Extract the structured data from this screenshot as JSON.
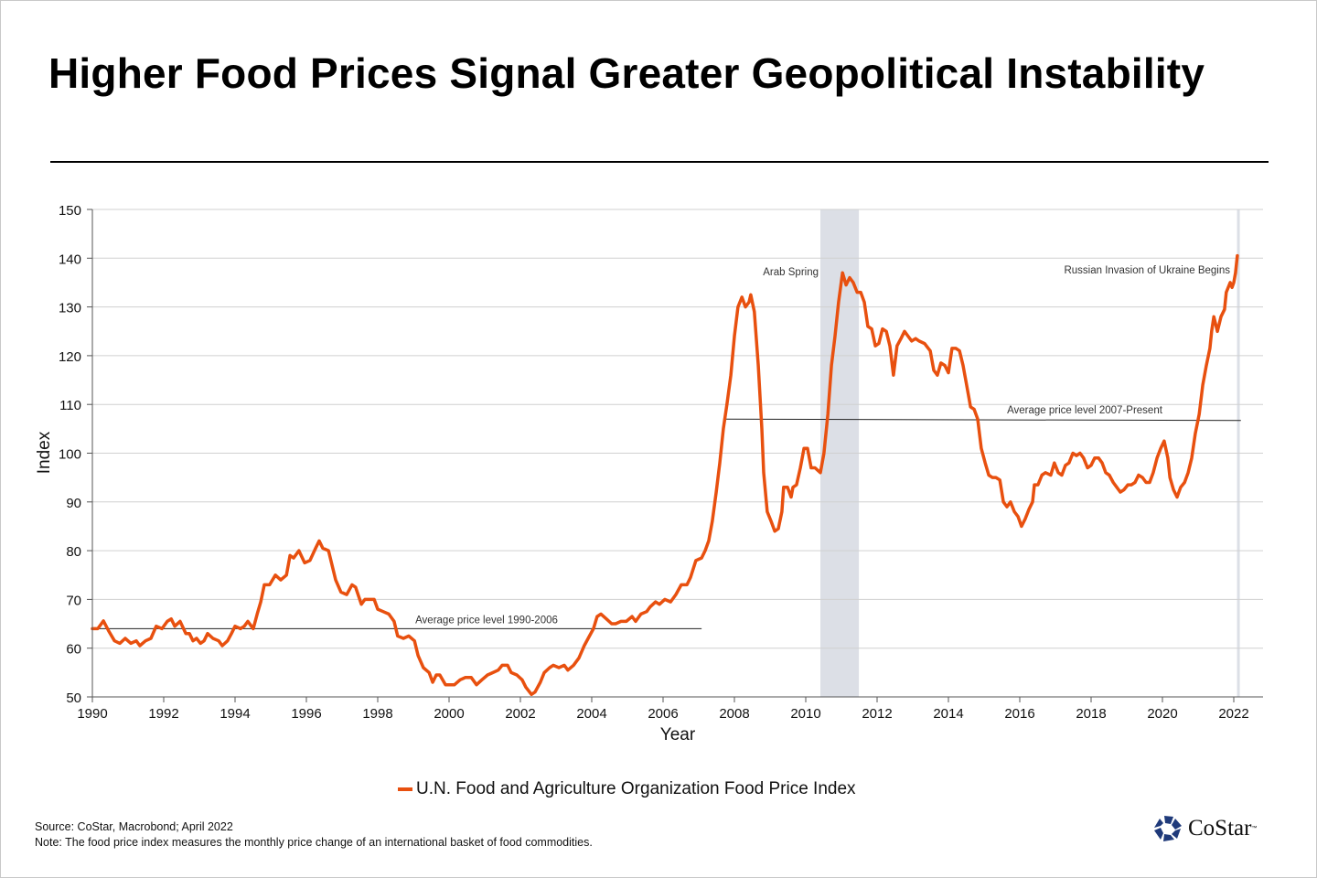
{
  "title": "Higher Food Prices Signal Greater Geopolitical Instability",
  "footer": {
    "source": "Source: CoStar, Macrobond; April 2022",
    "note": "Note: The food price index measures the monthly price change of an international basket of food commodities.",
    "logo_text": "CoStar",
    "logo_tm": "™"
  },
  "colors": {
    "series": "#e8500f",
    "shade": "#dcdfe6",
    "grid": "#d0d0d0",
    "logo": "#1f3a7a"
  },
  "chart_data": {
    "type": "line",
    "title": "Higher Food Prices Signal Greater Geopolitical Instability",
    "xlabel": "Year",
    "ylabel": "Index",
    "xlim": [
      1990,
      2022.82
    ],
    "ylim": [
      50,
      150
    ],
    "xticks": [
      "1990",
      "1992",
      "1994",
      "1996",
      "1998",
      "2000",
      "2002",
      "2004",
      "2006",
      "2008",
      "2010",
      "2012",
      "2014",
      "2016",
      "2018",
      "2020",
      "2022"
    ],
    "yticks": [
      "50",
      "60",
      "70",
      "80",
      "90",
      "100",
      "110",
      "120",
      "130",
      "140",
      "150"
    ],
    "grid": "horizontal",
    "legend_position": "bottom",
    "series": [
      {
        "name": "U.N. Food and Agriculture Organization Food Price Index",
        "points": [
          [
            1990.0,
            64
          ],
          [
            1990.15,
            64
          ],
          [
            1990.31,
            65.6
          ],
          [
            1990.46,
            63.5
          ],
          [
            1990.62,
            61.5
          ],
          [
            1990.77,
            61
          ],
          [
            1990.92,
            62
          ],
          [
            1991.08,
            61
          ],
          [
            1991.23,
            61.5
          ],
          [
            1991.33,
            60.5
          ],
          [
            1991.49,
            61.5
          ],
          [
            1991.64,
            62
          ],
          [
            1991.79,
            64.5
          ],
          [
            1991.95,
            64
          ],
          [
            1992.1,
            65.5
          ],
          [
            1992.21,
            66
          ],
          [
            1992.31,
            64.5
          ],
          [
            1992.46,
            65.5
          ],
          [
            1992.62,
            63
          ],
          [
            1992.72,
            63
          ],
          [
            1992.82,
            61.5
          ],
          [
            1992.92,
            62
          ],
          [
            1993.03,
            61
          ],
          [
            1993.13,
            61.5
          ],
          [
            1993.23,
            63
          ],
          [
            1993.38,
            62
          ],
          [
            1993.54,
            61.5
          ],
          [
            1993.64,
            60.5
          ],
          [
            1993.79,
            61.5
          ],
          [
            1993.9,
            63
          ],
          [
            1994.0,
            64.5
          ],
          [
            1994.15,
            64
          ],
          [
            1994.26,
            64.5
          ],
          [
            1994.36,
            65.5
          ],
          [
            1994.51,
            64
          ],
          [
            1994.62,
            67
          ],
          [
            1994.72,
            69.5
          ],
          [
            1994.82,
            73
          ],
          [
            1994.97,
            73
          ],
          [
            1995.13,
            75
          ],
          [
            1995.28,
            74
          ],
          [
            1995.44,
            75
          ],
          [
            1995.54,
            79
          ],
          [
            1995.64,
            78.5
          ],
          [
            1995.79,
            80
          ],
          [
            1995.95,
            77.5
          ],
          [
            1996.1,
            78
          ],
          [
            1996.26,
            80.5
          ],
          [
            1996.36,
            82
          ],
          [
            1996.46,
            80.5
          ],
          [
            1996.62,
            80
          ],
          [
            1996.72,
            77
          ],
          [
            1996.82,
            74
          ],
          [
            1996.97,
            71.5
          ],
          [
            1997.13,
            71
          ],
          [
            1997.28,
            73
          ],
          [
            1997.38,
            72.5
          ],
          [
            1997.54,
            69
          ],
          [
            1997.64,
            70
          ],
          [
            1997.79,
            70
          ],
          [
            1997.9,
            70
          ],
          [
            1998.0,
            68
          ],
          [
            1998.15,
            67.5
          ],
          [
            1998.31,
            67
          ],
          [
            1998.46,
            65.5
          ],
          [
            1998.56,
            62.5
          ],
          [
            1998.72,
            62
          ],
          [
            1998.87,
            62.5
          ],
          [
            1999.03,
            61.5
          ],
          [
            1999.13,
            58.5
          ],
          [
            1999.28,
            56
          ],
          [
            1999.44,
            55
          ],
          [
            1999.54,
            53
          ],
          [
            1999.64,
            54.5
          ],
          [
            1999.74,
            54.5
          ],
          [
            1999.9,
            52.5
          ],
          [
            2000.0,
            52.5
          ],
          [
            2000.15,
            52.5
          ],
          [
            2000.31,
            53.5
          ],
          [
            2000.46,
            54
          ],
          [
            2000.62,
            54
          ],
          [
            2000.77,
            52.5
          ],
          [
            2000.92,
            53.5
          ],
          [
            2001.08,
            54.5
          ],
          [
            2001.23,
            55
          ],
          [
            2001.38,
            55.5
          ],
          [
            2001.49,
            56.5
          ],
          [
            2001.64,
            56.5
          ],
          [
            2001.74,
            55
          ],
          [
            2001.9,
            54.5
          ],
          [
            2002.05,
            53.5
          ],
          [
            2002.15,
            52
          ],
          [
            2002.31,
            50.5
          ],
          [
            2002.41,
            51
          ],
          [
            2002.56,
            53
          ],
          [
            2002.67,
            55
          ],
          [
            2002.82,
            56
          ],
          [
            2002.92,
            56.5
          ],
          [
            2003.08,
            56
          ],
          [
            2003.23,
            56.5
          ],
          [
            2003.33,
            55.5
          ],
          [
            2003.49,
            56.5
          ],
          [
            2003.64,
            58
          ],
          [
            2003.79,
            60.5
          ],
          [
            2003.9,
            62
          ],
          [
            2004.05,
            64
          ],
          [
            2004.15,
            66.5
          ],
          [
            2004.26,
            67
          ],
          [
            2004.41,
            66
          ],
          [
            2004.56,
            65
          ],
          [
            2004.67,
            65
          ],
          [
            2004.82,
            65.5
          ],
          [
            2004.97,
            65.5
          ],
          [
            2005.13,
            66.5
          ],
          [
            2005.23,
            65.5
          ],
          [
            2005.38,
            67
          ],
          [
            2005.54,
            67.5
          ],
          [
            2005.64,
            68.5
          ],
          [
            2005.79,
            69.5
          ],
          [
            2005.9,
            69
          ],
          [
            2006.05,
            70
          ],
          [
            2006.21,
            69.5
          ],
          [
            2006.36,
            71
          ],
          [
            2006.51,
            73
          ],
          [
            2006.67,
            73
          ],
          [
            2006.77,
            74.5
          ],
          [
            2006.92,
            78
          ],
          [
            2007.08,
            78.5
          ],
          [
            2007.18,
            80
          ],
          [
            2007.28,
            82
          ],
          [
            2007.38,
            86
          ],
          [
            2007.49,
            92
          ],
          [
            2007.59,
            98
          ],
          [
            2007.69,
            105
          ],
          [
            2007.79,
            110
          ],
          [
            2007.9,
            116
          ],
          [
            2008.0,
            124
          ],
          [
            2008.1,
            130
          ],
          [
            2008.21,
            132
          ],
          [
            2008.31,
            130
          ],
          [
            2008.41,
            131
          ],
          [
            2008.46,
            132.5
          ],
          [
            2008.56,
            129
          ],
          [
            2008.67,
            118
          ],
          [
            2008.77,
            105
          ],
          [
            2008.82,
            96
          ],
          [
            2008.92,
            88
          ],
          [
            2009.03,
            86
          ],
          [
            2009.13,
            84
          ],
          [
            2009.23,
            84.5
          ],
          [
            2009.33,
            88
          ],
          [
            2009.38,
            93
          ],
          [
            2009.49,
            93
          ],
          [
            2009.59,
            91
          ],
          [
            2009.64,
            93
          ],
          [
            2009.74,
            93.5
          ],
          [
            2009.85,
            97
          ],
          [
            2009.95,
            101
          ],
          [
            2010.05,
            101
          ],
          [
            2010.15,
            97
          ],
          [
            2010.26,
            97
          ],
          [
            2010.41,
            96
          ],
          [
            2010.51,
            100
          ],
          [
            2010.62,
            108
          ],
          [
            2010.72,
            118
          ],
          [
            2010.82,
            124
          ],
          [
            2010.92,
            131
          ],
          [
            2011.03,
            137
          ],
          [
            2011.13,
            134.5
          ],
          [
            2011.23,
            136
          ],
          [
            2011.33,
            135
          ],
          [
            2011.44,
            133
          ],
          [
            2011.54,
            133
          ],
          [
            2011.64,
            131
          ],
          [
            2011.74,
            126
          ],
          [
            2011.85,
            125.5
          ],
          [
            2011.95,
            122
          ],
          [
            2012.05,
            122.5
          ],
          [
            2012.15,
            125.5
          ],
          [
            2012.26,
            125
          ],
          [
            2012.36,
            122
          ],
          [
            2012.46,
            116
          ],
          [
            2012.56,
            122
          ],
          [
            2012.67,
            123.5
          ],
          [
            2012.77,
            125
          ],
          [
            2012.87,
            124
          ],
          [
            2012.97,
            123
          ],
          [
            2013.08,
            123.5
          ],
          [
            2013.18,
            123
          ],
          [
            2013.33,
            122.5
          ],
          [
            2013.49,
            121
          ],
          [
            2013.59,
            117
          ],
          [
            2013.69,
            116
          ],
          [
            2013.79,
            118.5
          ],
          [
            2013.9,
            118
          ],
          [
            2014.0,
            116.5
          ],
          [
            2014.1,
            121.5
          ],
          [
            2014.21,
            121.5
          ],
          [
            2014.31,
            121
          ],
          [
            2014.41,
            118
          ],
          [
            2014.51,
            114
          ],
          [
            2014.62,
            109.5
          ],
          [
            2014.72,
            109
          ],
          [
            2014.82,
            107
          ],
          [
            2014.92,
            101
          ],
          [
            2015.03,
            98
          ],
          [
            2015.13,
            95.5
          ],
          [
            2015.23,
            95
          ],
          [
            2015.33,
            95
          ],
          [
            2015.44,
            94.5
          ],
          [
            2015.54,
            90
          ],
          [
            2015.64,
            89
          ],
          [
            2015.74,
            90
          ],
          [
            2015.85,
            88
          ],
          [
            2015.95,
            87
          ],
          [
            2016.05,
            85
          ],
          [
            2016.15,
            86.5
          ],
          [
            2016.26,
            88.5
          ],
          [
            2016.36,
            90
          ],
          [
            2016.41,
            93.5
          ],
          [
            2016.51,
            93.5
          ],
          [
            2016.62,
            95.5
          ],
          [
            2016.72,
            96
          ],
          [
            2016.87,
            95.5
          ],
          [
            2016.97,
            98
          ],
          [
            2017.08,
            96
          ],
          [
            2017.18,
            95.5
          ],
          [
            2017.28,
            97.5
          ],
          [
            2017.38,
            98
          ],
          [
            2017.49,
            100
          ],
          [
            2017.59,
            99.5
          ],
          [
            2017.69,
            100
          ],
          [
            2017.79,
            99
          ],
          [
            2017.9,
            97
          ],
          [
            2018.0,
            97.5
          ],
          [
            2018.1,
            99
          ],
          [
            2018.21,
            99
          ],
          [
            2018.31,
            98
          ],
          [
            2018.41,
            96
          ],
          [
            2018.51,
            95.5
          ],
          [
            2018.62,
            94
          ],
          [
            2018.72,
            93
          ],
          [
            2018.82,
            92
          ],
          [
            2018.92,
            92.5
          ],
          [
            2019.03,
            93.5
          ],
          [
            2019.13,
            93.5
          ],
          [
            2019.23,
            94
          ],
          [
            2019.33,
            95.5
          ],
          [
            2019.44,
            95
          ],
          [
            2019.54,
            94
          ],
          [
            2019.64,
            94
          ],
          [
            2019.74,
            96
          ],
          [
            2019.85,
            99
          ],
          [
            2019.95,
            101
          ],
          [
            2020.05,
            102.5
          ],
          [
            2020.15,
            99
          ],
          [
            2020.21,
            95
          ],
          [
            2020.31,
            92.5
          ],
          [
            2020.41,
            91
          ],
          [
            2020.51,
            93
          ],
          [
            2020.62,
            94
          ],
          [
            2020.72,
            96
          ],
          [
            2020.82,
            99
          ],
          [
            2020.92,
            104
          ],
          [
            2021.03,
            108
          ],
          [
            2021.13,
            114
          ],
          [
            2021.23,
            118
          ],
          [
            2021.33,
            121.5
          ],
          [
            2021.38,
            125
          ],
          [
            2021.44,
            128
          ],
          [
            2021.54,
            125
          ],
          [
            2021.64,
            128
          ],
          [
            2021.74,
            129.5
          ],
          [
            2021.79,
            133
          ],
          [
            2021.9,
            135
          ],
          [
            2021.95,
            134
          ],
          [
            2022.0,
            135
          ],
          [
            2022.05,
            137
          ],
          [
            2022.1,
            140.5
          ]
        ]
      }
    ],
    "reference_lines": [
      {
        "label": "Average price level 1990-2006",
        "value": 64,
        "from": 1990,
        "to": 2007.08
      },
      {
        "label": "Average price level 2007-Present",
        "value": 107,
        "from": 2007.69,
        "to": 2022.2
      }
    ],
    "annotations": [
      {
        "label": "Arab Spring",
        "type": "shaded-band",
        "from": 2010.41,
        "to": 2011.49
      },
      {
        "label": "Russian Invasion of Ukraine Begins",
        "type": "vertical-line",
        "at": 2022.13
      }
    ]
  }
}
